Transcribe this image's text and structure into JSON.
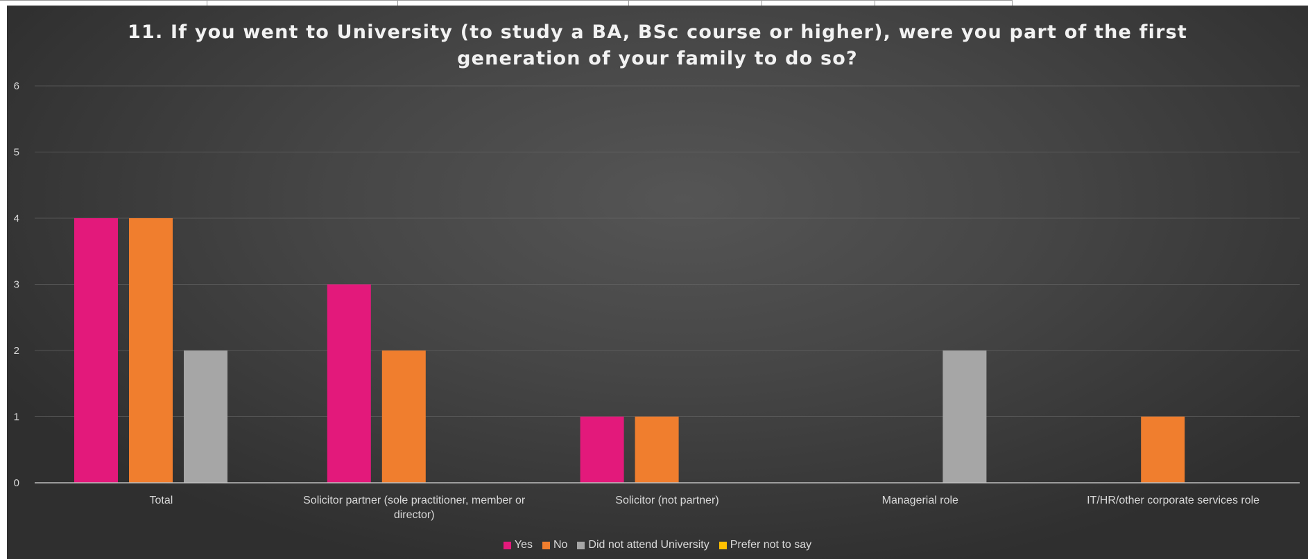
{
  "chart_data": {
    "type": "bar",
    "title_lines": [
      "11. If you went to University (to study a BA, BSc course or higher), were you part of the first",
      "generation of your family to do so?"
    ],
    "categories": [
      [
        "Total"
      ],
      [
        "Solicitor partner (sole practitioner, member or",
        "director)"
      ],
      [
        "Solicitor (not partner)"
      ],
      [
        "Managerial role"
      ],
      [
        "IT/HR/other corporate services role"
      ]
    ],
    "series": [
      {
        "name": "Yes",
        "color": "#e3197b",
        "values": [
          4,
          3,
          1,
          0,
          0
        ]
      },
      {
        "name": "No",
        "color": "#f07e2e",
        "values": [
          4,
          2,
          1,
          0,
          1
        ]
      },
      {
        "name": "Did not attend University",
        "color": "#a6a6a6",
        "values": [
          2,
          0,
          0,
          2,
          0
        ]
      },
      {
        "name": "Prefer not to say",
        "color": "#ffc000",
        "values": [
          0,
          0,
          0,
          0,
          0
        ]
      }
    ],
    "yticks": [
      0,
      1,
      2,
      3,
      4,
      5,
      6
    ],
    "ylim": [
      0,
      6
    ],
    "grid": true,
    "legend_position": "bottom"
  }
}
